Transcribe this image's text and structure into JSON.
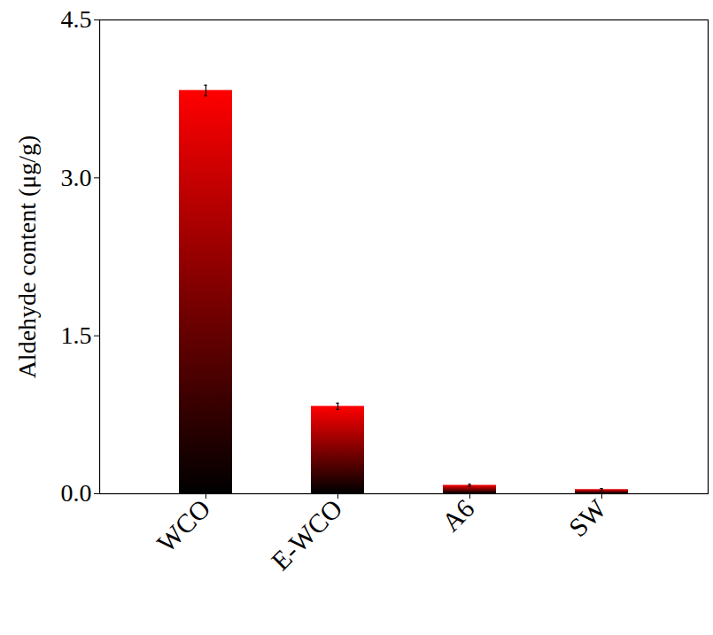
{
  "chart_data": {
    "type": "bar",
    "y_label": "Aldehyde content (μg/g)",
    "categories": [
      "WCO",
      "E-WCO",
      "A6",
      "SW"
    ],
    "values": [
      3.83,
      0.83,
      0.08,
      0.04
    ],
    "errors": [
      0.05,
      0.03,
      0.01,
      0.01
    ],
    "color": "#ff0000",
    "ylim": [
      0,
      4.5
    ],
    "yticks": [
      {
        "value": 0,
        "label": "0.0"
      },
      1.5,
      {
        "value": 3,
        "label": "3.0"
      },
      4.5
    ],
    "grid": false
  }
}
